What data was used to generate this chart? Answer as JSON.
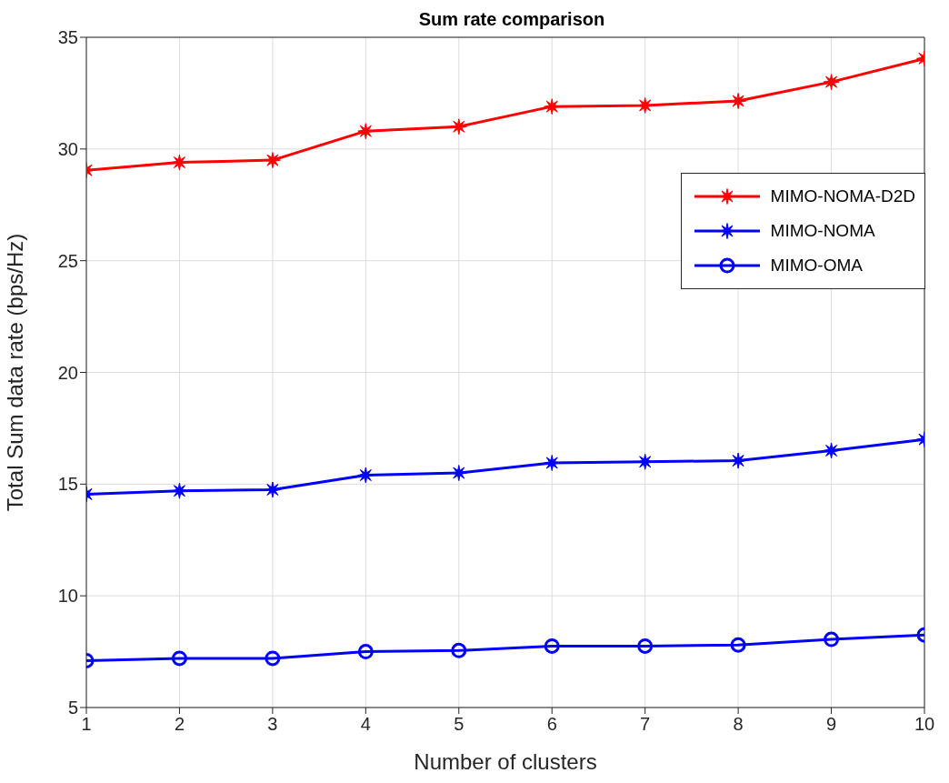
{
  "chart_data": {
    "type": "line",
    "title": "Sum rate comparison",
    "xlabel": "Number of clusters",
    "ylabel": "Total Sum data rate (bps/Hz)",
    "x": [
      1,
      2,
      3,
      4,
      5,
      6,
      7,
      8,
      9,
      10
    ],
    "series": [
      {
        "name": "MIMO-NOMA-D2D",
        "color": "#ff0000",
        "marker": "star",
        "values": [
          29.05,
          29.4,
          29.5,
          30.8,
          31.0,
          31.9,
          31.95,
          32.15,
          33.0,
          34.05
        ]
      },
      {
        "name": "MIMO-NOMA",
        "color": "#0000ff",
        "marker": "star",
        "values": [
          14.55,
          14.7,
          14.75,
          15.4,
          15.5,
          15.95,
          16.0,
          16.05,
          16.5,
          17.0
        ]
      },
      {
        "name": "MIMO-OMA",
        "color": "#0000ff",
        "marker": "circle",
        "values": [
          7.1,
          7.2,
          7.2,
          7.5,
          7.55,
          7.75,
          7.75,
          7.8,
          8.05,
          8.25
        ]
      }
    ],
    "xlim": [
      1,
      10
    ],
    "xticks": [
      1,
      2,
      3,
      4,
      5,
      6,
      7,
      8,
      9,
      10
    ],
    "ylim": [
      5,
      35
    ],
    "yticks": [
      5,
      10,
      15,
      20,
      25,
      30,
      35
    ],
    "grid": true,
    "legend": "top right",
    "line_style": "solid"
  }
}
